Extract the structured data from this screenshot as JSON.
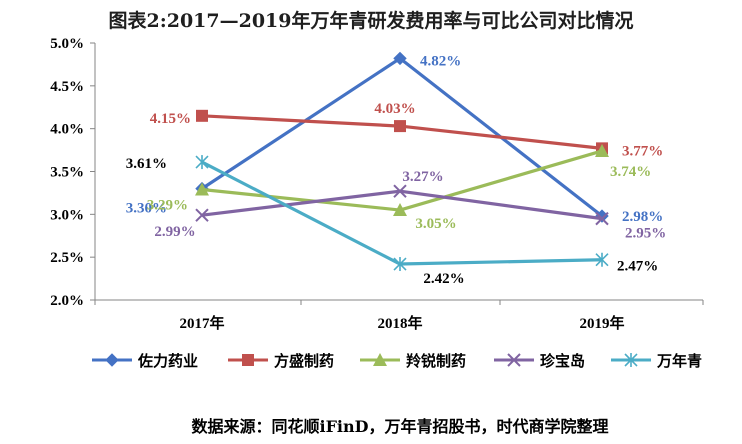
{
  "chart_data": {
    "type": "line",
    "title": "图表2:2017—2019年万年青研发费用率与可比公司对比情况",
    "categories": [
      "2017年",
      "2018年",
      "2019年"
    ],
    "ylim": [
      0.02,
      0.05
    ],
    "y_ticks": [
      "2.0%",
      "2.5%",
      "3.0%",
      "3.5%",
      "4.0%",
      "4.5%",
      "5.0%"
    ],
    "y_tick_values": [
      0.02,
      0.025,
      0.03,
      0.035,
      0.04,
      0.045,
      0.05
    ],
    "grid": false,
    "legend_position": "bottom",
    "series": [
      {
        "name": "佐力药业",
        "color": "#4472C4",
        "label_color": "#4472C4",
        "marker": "diamond",
        "values": [
          0.033,
          0.0482,
          0.0298
        ],
        "labels": [
          "3.30%",
          "4.82%",
          "2.98%"
        ]
      },
      {
        "name": "方盛制药",
        "color": "#C0504D",
        "label_color": "#C0504D",
        "marker": "square",
        "values": [
          0.0415,
          0.0403,
          0.0377
        ],
        "labels": [
          "4.15%",
          "4.03%",
          "3.77%"
        ]
      },
      {
        "name": "羚锐制药",
        "color": "#9BBB59",
        "label_color": "#9BBB59",
        "marker": "triangle",
        "values": [
          0.0329,
          0.0305,
          0.0374
        ],
        "labels": [
          "3.29%",
          "3.05%",
          "3.74%"
        ]
      },
      {
        "name": "珍宝岛",
        "color": "#8064A2",
        "label_color": "#8064A2",
        "marker": "x",
        "values": [
          0.0299,
          0.0327,
          0.0295
        ],
        "labels": [
          "2.99%",
          "3.27%",
          "2.95%"
        ]
      },
      {
        "name": "万年青",
        "color": "#4BACC6",
        "label_color": "#000000",
        "marker": "star",
        "values": [
          0.0361,
          0.0242,
          0.0247
        ],
        "labels": [
          "3.61%",
          "2.42%",
          "2.47%"
        ]
      }
    ]
  },
  "source_note": "数据来源：同花顺iFinD，万年青招股书，时代商学院整理"
}
